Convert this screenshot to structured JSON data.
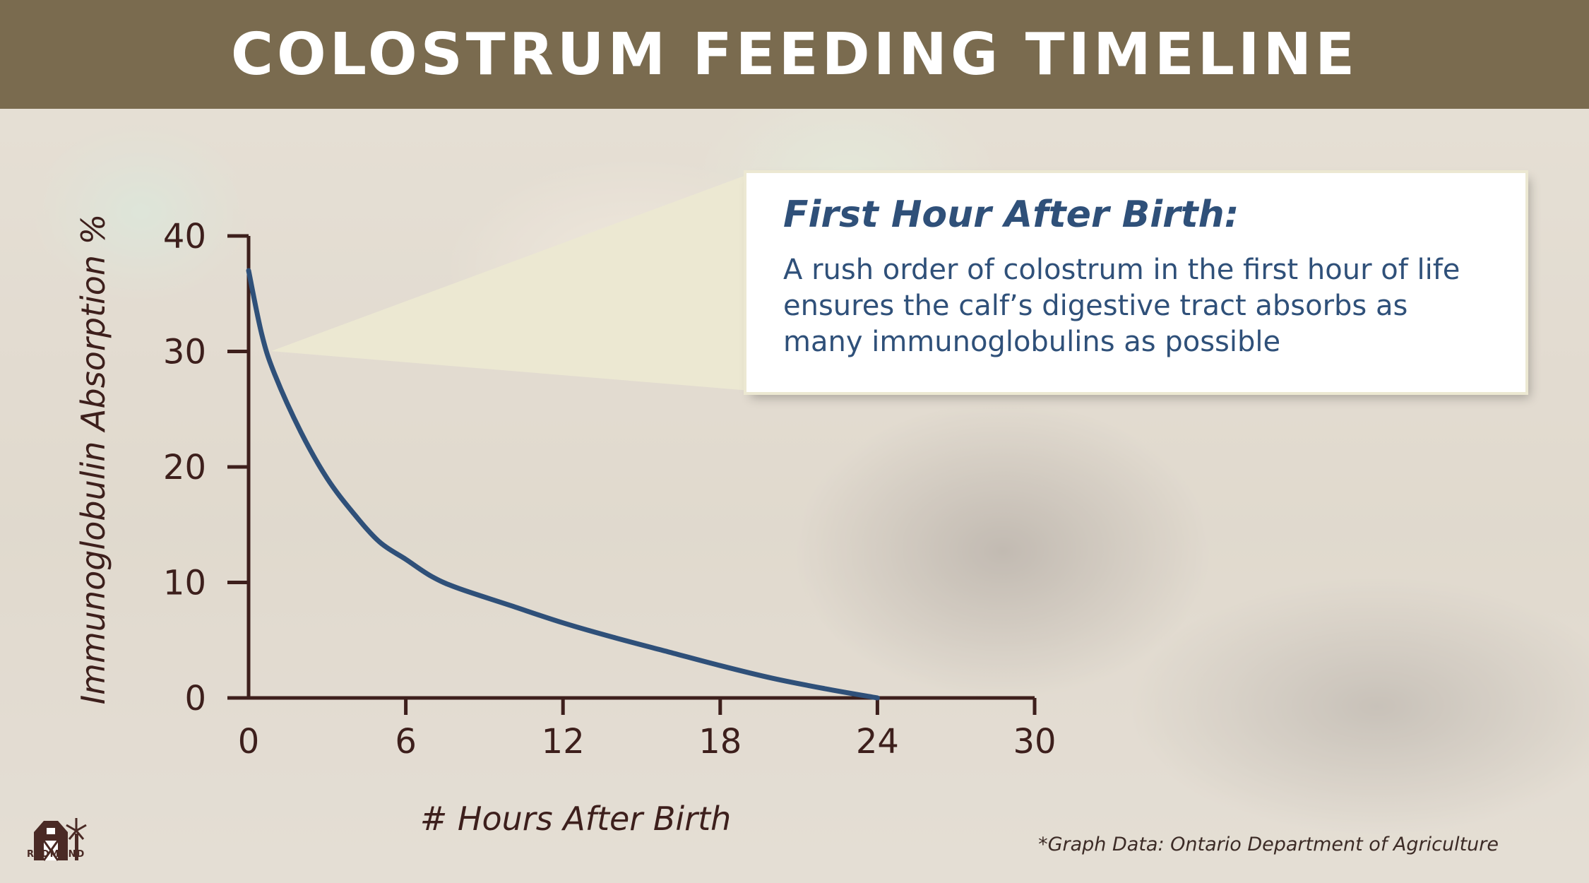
{
  "header": {
    "title": "COLOSTRUM FEEDING TIMELINE"
  },
  "callout": {
    "title": "First Hour After Birth:",
    "body": "A rush order of colostrum in the first hour of life ensures the calf’s digestive tract absorbs as many immunoglobulins as possible"
  },
  "footnote": "*Graph Data: Ontario Department of Agriculture",
  "logo": {
    "text": "REDMOND",
    "icon": "barn-windmill-icon"
  },
  "colors": {
    "header": "#7a6b4f",
    "axis": "#3d1f1c",
    "curve": "#2f5079",
    "callout_text": "#2f5079",
    "callout_wedge": "#ece8d2"
  },
  "chart_data": {
    "type": "line",
    "title": "",
    "xlabel": "# Hours After Birth",
    "ylabel": "Immunoglobulin Absorption %",
    "xlim": [
      0,
      30
    ],
    "ylim": [
      0,
      40
    ],
    "x_ticks": [
      0,
      6,
      12,
      18,
      24,
      30
    ],
    "y_ticks": [
      0,
      10,
      20,
      30,
      40
    ],
    "grid": false,
    "series": [
      {
        "x": [
          0,
          0.5,
          1,
          2,
          3,
          4,
          5,
          6,
          7,
          8,
          10,
          12,
          14,
          16,
          18,
          20,
          22,
          24
        ],
        "y": [
          37,
          31.5,
          28,
          23,
          19,
          16,
          13.5,
          12,
          10.5,
          9.5,
          8,
          6.5,
          5.2,
          4,
          2.8,
          1.7,
          0.8,
          0
        ]
      }
    ]
  }
}
